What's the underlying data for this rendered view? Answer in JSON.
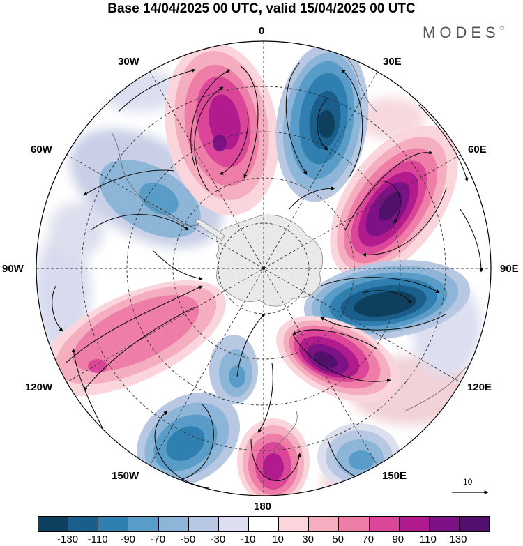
{
  "title": "Base 14/04/2025 00 UTC, valid 15/04/2025 00 UTC",
  "brand": "MODES",
  "brand_mark": "©",
  "longitude_labels": {
    "top": "0",
    "e30": "30E",
    "e60": "60E",
    "e90": "90E",
    "e120": "120E",
    "e150": "150E",
    "bottom": "180",
    "w150": "150W",
    "w120": "120W",
    "w90": "90W",
    "w60": "60W",
    "w30": "30W"
  },
  "reference_vector": {
    "value": "10"
  },
  "colorbar": {
    "colors": [
      "#0e3f5e",
      "#1a5f8b",
      "#2f7fb1",
      "#5a9cc8",
      "#8cb5d8",
      "#b9c8e2",
      "#dedfee",
      "#ffffff",
      "#fad6dc",
      "#f5aec0",
      "#ee7ea7",
      "#db4698",
      "#b21b8d",
      "#7d1186",
      "#51106c"
    ],
    "tick_labels": [
      "-130",
      "-110",
      "-90",
      "-70",
      "-50",
      "-30",
      "-10",
      "10",
      "30",
      "50",
      "70",
      "90",
      "110",
      "130"
    ]
  },
  "anomaly_centers": [
    {
      "sign": "positive",
      "label": "high over 15W"
    },
    {
      "sign": "negative",
      "label": "low over 20E"
    },
    {
      "sign": "positive",
      "label": "high over 60E"
    },
    {
      "sign": "negative",
      "label": "low over 100E"
    },
    {
      "sign": "positive",
      "label": "high over 130E"
    },
    {
      "sign": "negative",
      "label": "low over 150E"
    },
    {
      "sign": "positive",
      "label": "high over 180"
    },
    {
      "sign": "negative",
      "label": "low over 150W"
    },
    {
      "sign": "positive",
      "label": "high over 110W"
    },
    {
      "sign": "negative",
      "label": "low over 60W"
    }
  ]
}
